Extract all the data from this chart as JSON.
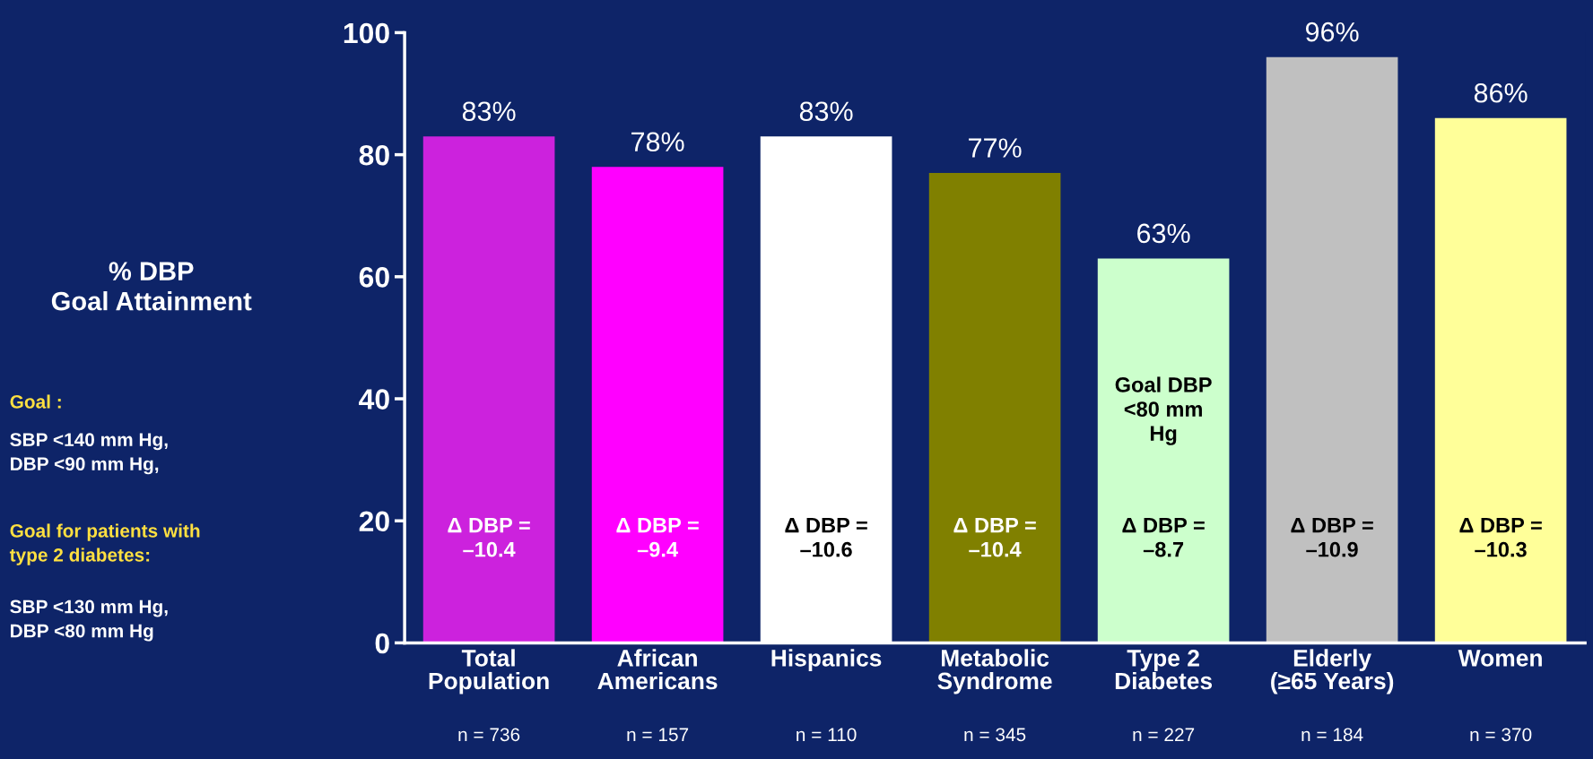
{
  "chart_data": {
    "type": "bar",
    "ylabel": "% DBP\nGoal Attainment",
    "categories": [
      "Total\nPopulation\nn = 736",
      "African\nAmericans\nn = 157",
      "Hispanics\n\nn = 110",
      "Metabolic\nSyndrome\nn = 345",
      "Type 2\nDiabetes\nn = 227",
      "Elderly\n(≥65 Years)\nn = 184",
      "Women\n\nn = 370"
    ],
    "values": [
      83,
      78,
      83,
      77,
      63,
      96,
      86
    ],
    "value_labels": [
      "83%",
      "78%",
      "83%",
      "77%",
      "63%",
      "96%",
      "86%"
    ],
    "colors": [
      "#cc22dd",
      "#ff00ff",
      "#ffffff",
      "#808000",
      "#ccffcc",
      "#c0c0c0",
      "#ffff99"
    ],
    "ylim": [
      0,
      100
    ],
    "yticks": [
      0,
      20,
      40,
      60,
      80,
      100
    ],
    "grid": false,
    "legend": false,
    "annotations": [
      "Δ DBP =\n–10.4",
      "Δ DBP =\n–9.4",
      "Δ DBP =\n–10.6",
      "Δ DBP =\n–10.4",
      "Δ DBP =\n–8.7",
      "Δ DBP =\n–10.9",
      "Δ DBP =\n–10.3",
      "Goal DBP\n<80 mm\nHg",
      "Goal :",
      "SBP <140 mm Hg,\nDBP <90 mm Hg,",
      "Goal for patients with\ntype 2 diabetes:",
      "SBP <130 mm Hg,\nDBP <80 mm Hg"
    ]
  }
}
